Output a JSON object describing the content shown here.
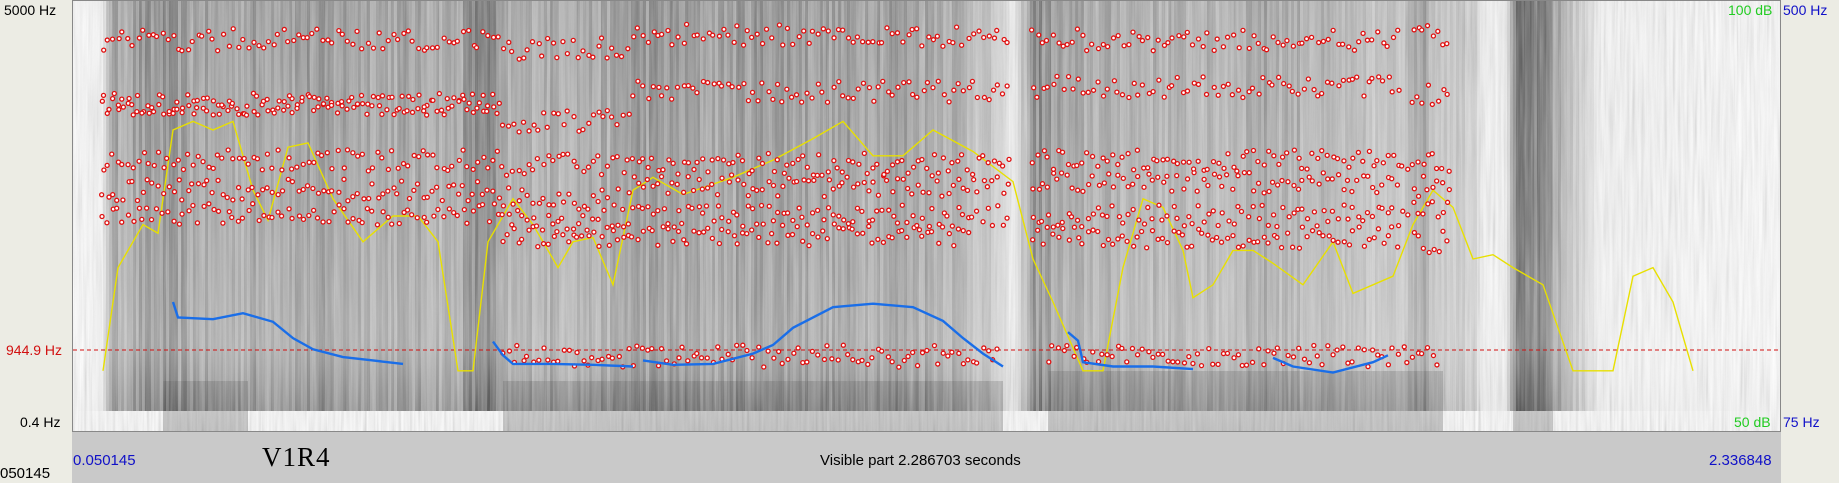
{
  "freq_axis": {
    "top_label": "5000 Hz",
    "cursor_label": "944.9 Hz",
    "bottom_label": "0.4 Hz"
  },
  "intensity_axis": {
    "top_label": "100 dB",
    "bottom_label": "50 dB"
  },
  "pitch_axis": {
    "top_label": "500 Hz",
    "bottom_label": "75 Hz"
  },
  "time_bar": {
    "start": "0.050145",
    "end": "2.336848",
    "visible_part": "Visible part 2.286703 seconds",
    "left_readout": "050145"
  },
  "tier_label": "V1R4",
  "colors": {
    "formant": "#e01010",
    "intensity": "#e8e000",
    "pitch": "#1a6ee8",
    "cursor": "#d21010",
    "axis_db": "#22cc22",
    "axis_hz": "#1010c8"
  }
}
